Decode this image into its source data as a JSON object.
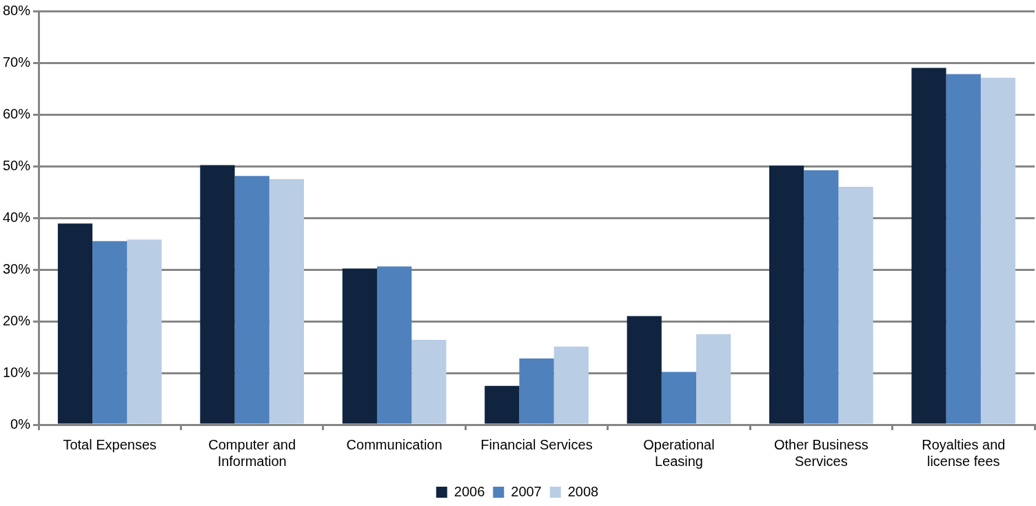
{
  "chart_data": {
    "type": "bar",
    "categories": [
      "Total Expenses",
      "Computer and Information",
      "Communication",
      "Financial Services",
      "Operational Leasing",
      "Other Business Services",
      "Royalties and license fees"
    ],
    "series": [
      {
        "name": "2006",
        "color": "#10243f",
        "values": [
          38.9,
          50.2,
          30.2,
          7.5,
          21.0,
          50.1,
          69.0
        ]
      },
      {
        "name": "2007",
        "color": "#4f81bd",
        "values": [
          35.5,
          48.1,
          30.6,
          12.8,
          10.2,
          49.2,
          67.8
        ]
      },
      {
        "name": "2008",
        "color": "#b9cde5",
        "values": [
          35.8,
          47.5,
          16.4,
          15.1,
          17.5,
          46.0,
          67.1
        ]
      }
    ],
    "ylim": [
      0,
      80
    ],
    "yticks": [
      {
        "value": 0,
        "label": "0%"
      },
      {
        "value": 10,
        "label": "10%"
      },
      {
        "value": 20,
        "label": "20%"
      },
      {
        "value": 30,
        "label": "30%"
      },
      {
        "value": 40,
        "label": "40%"
      },
      {
        "value": 50,
        "label": "50%"
      },
      {
        "value": 60,
        "label": "60%"
      },
      {
        "value": 70,
        "label": "70%"
      },
      {
        "value": 80,
        "label": "80%"
      }
    ],
    "grid": "y",
    "legend": "bottom"
  }
}
